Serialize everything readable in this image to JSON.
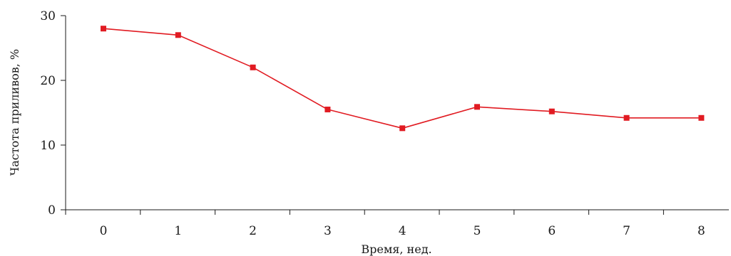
{
  "chart_data": {
    "type": "line",
    "title": "",
    "xlabel": "Время, нед.",
    "ylabel": "Частота приливов, %",
    "x": [
      0,
      1,
      2,
      3,
      4,
      5,
      6,
      7,
      8
    ],
    "x_tick_labels": [
      "0",
      "1",
      "2",
      "3",
      "4",
      "5",
      "6",
      "7",
      "8"
    ],
    "y_tick_labels": [
      "0",
      "10",
      "20",
      "30"
    ],
    "y_ticks": [
      0,
      10,
      20,
      30
    ],
    "ylim": [
      0,
      30
    ],
    "grid": false,
    "legend": "none",
    "series": [
      {
        "values": [
          28,
          27,
          22,
          15.5,
          12.6,
          15.9,
          15.2,
          14.2,
          14.2
        ],
        "color": "#e11b22",
        "marker": "square"
      }
    ]
  }
}
